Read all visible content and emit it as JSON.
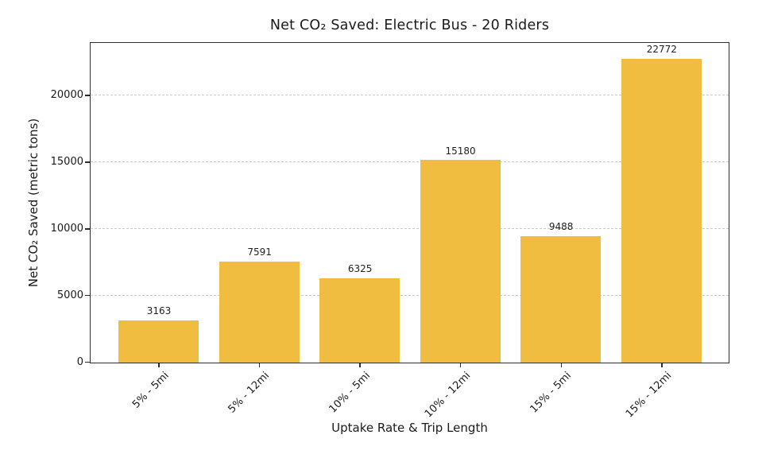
{
  "chart_data": {
    "type": "bar",
    "title": "Net CO₂ Saved: Electric Bus - 20 Riders",
    "xlabel": "Uptake Rate & Trip Length",
    "ylabel": "Net CO₂ Saved (metric tons)",
    "categories": [
      "5% - 5mi",
      "5% - 12mi",
      "10% - 5mi",
      "10% - 12mi",
      "15% - 5mi",
      "15% - 12mi"
    ],
    "values": [
      3163,
      7591,
      6325,
      15180,
      9488,
      22772
    ],
    "bar_labels": [
      "3163",
      "7591",
      "6325",
      "15180",
      "9488",
      "22772"
    ],
    "yticks": [
      0,
      5000,
      10000,
      15000,
      20000
    ],
    "ylim": [
      0,
      23900
    ],
    "grid": "horizontal-dashed",
    "legend_position": "none",
    "colors": {
      "bar": "#F0BD40",
      "grid": "#c9c9c9",
      "spine": "#2e2e2e",
      "text": "#1a1a1a",
      "background": "#ffffff"
    }
  }
}
